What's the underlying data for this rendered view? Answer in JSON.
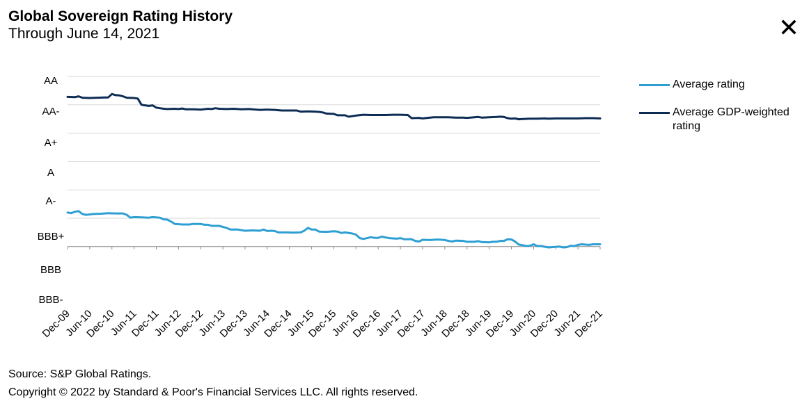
{
  "header": {
    "title": "Global Sovereign Rating History",
    "subtitle": "Through June 14, 2021"
  },
  "icons": {
    "close": "close-icon"
  },
  "footer": {
    "source": "Source: S&P Global Ratings.",
    "copyright": "Copyright © 2022 by Standard & Poor's Financial Services LLC. All rights reserved."
  },
  "chart_data": {
    "type": "line",
    "title": "Global Sovereign Rating History",
    "subtitle": "Through June 14, 2021",
    "xlabel": "",
    "ylabel": "",
    "x_ticks": [
      "Dec-09",
      "Jun-10",
      "Dec-10",
      "Jun-11",
      "Dec-11",
      "Jun-12",
      "Dec-12",
      "Jun-13",
      "Dec-13",
      "Jun-14",
      "Dec-14",
      "Jun-15",
      "Dec-15",
      "Jun-16",
      "Dec-16",
      "Jun-17",
      "Dec-17",
      "Jun-18",
      "Dec-18",
      "Jun-19",
      "Dec-19",
      "Jun-20",
      "Dec-20",
      "Jun-21",
      "Dec-21"
    ],
    "y_ticks": [
      "AA",
      "AA-",
      "A+",
      "A",
      "A-",
      "BBB+",
      "BBB",
      "BBB-"
    ],
    "y_tick_values": [
      19,
      18,
      17,
      16,
      15,
      14,
      13,
      12
    ],
    "ylim": [
      12,
      19
    ],
    "xlim": [
      0,
      144
    ],
    "grid": true,
    "legend_position": "right",
    "series": [
      {
        "name": "Average rating",
        "color": "#2e9fd3",
        "points": [
          [
            0,
            14.2
          ],
          [
            1,
            14.18
          ],
          [
            2,
            14.23
          ],
          [
            3,
            14.25
          ],
          [
            4,
            14.15
          ],
          [
            5,
            14.12
          ],
          [
            7,
            14.15
          ],
          [
            9,
            14.16
          ],
          [
            11,
            14.18
          ],
          [
            13,
            14.17
          ],
          [
            15,
            14.17
          ],
          [
            16,
            14.12
          ],
          [
            17,
            14.02
          ],
          [
            18,
            14.04
          ],
          [
            20,
            14.03
          ],
          [
            22,
            14.02
          ],
          [
            23,
            14.04
          ],
          [
            25,
            14.02
          ],
          [
            26,
            13.96
          ],
          [
            27,
            13.95
          ],
          [
            28,
            13.88
          ],
          [
            29,
            13.8
          ],
          [
            31,
            13.78
          ],
          [
            33,
            13.78
          ],
          [
            34,
            13.8
          ],
          [
            36,
            13.8
          ],
          [
            37,
            13.77
          ],
          [
            38,
            13.77
          ],
          [
            39,
            13.73
          ],
          [
            41,
            13.73
          ],
          [
            43,
            13.66
          ],
          [
            44,
            13.6
          ],
          [
            46,
            13.6
          ],
          [
            48,
            13.56
          ],
          [
            50,
            13.57
          ],
          [
            52,
            13.56
          ],
          [
            53,
            13.6
          ],
          [
            54,
            13.55
          ],
          [
            55,
            13.56
          ],
          [
            56,
            13.55
          ],
          [
            57,
            13.5
          ],
          [
            59,
            13.5
          ],
          [
            61,
            13.49
          ],
          [
            63,
            13.5
          ],
          [
            64,
            13.56
          ],
          [
            65,
            13.66
          ],
          [
            66,
            13.6
          ],
          [
            67,
            13.6
          ],
          [
            68,
            13.53
          ],
          [
            70,
            13.52
          ],
          [
            72,
            13.54
          ],
          [
            73,
            13.53
          ],
          [
            74,
            13.48
          ],
          [
            75,
            13.5
          ],
          [
            77,
            13.46
          ],
          [
            78,
            13.42
          ],
          [
            79,
            13.3
          ],
          [
            80,
            13.27
          ],
          [
            82,
            13.33
          ],
          [
            83,
            13.31
          ],
          [
            84,
            13.31
          ],
          [
            85,
            13.35
          ],
          [
            86,
            13.32
          ],
          [
            87,
            13.3
          ],
          [
            89,
            13.28
          ],
          [
            90,
            13.3
          ],
          [
            91,
            13.26
          ],
          [
            93,
            13.26
          ],
          [
            94,
            13.2
          ],
          [
            95,
            13.18
          ],
          [
            96,
            13.24
          ],
          [
            98,
            13.23
          ],
          [
            100,
            13.25
          ],
          [
            102,
            13.23
          ],
          [
            103,
            13.2
          ],
          [
            104,
            13.18
          ],
          [
            105,
            13.21
          ],
          [
            107,
            13.2
          ],
          [
            108,
            13.17
          ],
          [
            110,
            13.17
          ],
          [
            111,
            13.19
          ],
          [
            112,
            13.16
          ],
          [
            114,
            13.15
          ],
          [
            115,
            13.17
          ],
          [
            116,
            13.17
          ],
          [
            117,
            13.2
          ],
          [
            118,
            13.2
          ],
          [
            119,
            13.26
          ],
          [
            120,
            13.25
          ],
          [
            121,
            13.18
          ],
          [
            122,
            13.07
          ],
          [
            123,
            13.05
          ],
          [
            124,
            13.02
          ],
          [
            125,
            13.03
          ],
          [
            126,
            13.08
          ],
          [
            127,
            13.02
          ],
          [
            128,
            13.02
          ],
          [
            130,
            12.97
          ],
          [
            131,
            12.98
          ],
          [
            133,
            13.0
          ],
          [
            134,
            12.97
          ],
          [
            135,
            12.98
          ],
          [
            136,
            13.03
          ],
          [
            137,
            13.02
          ],
          [
            138,
            13.06
          ],
          [
            139,
            13.08
          ],
          [
            141,
            13.06
          ],
          [
            142,
            13.08
          ],
          [
            144,
            13.08
          ]
        ]
      },
      {
        "name": "Average GDP-weighted rating",
        "color": "#0d2c54",
        "points": [
          [
            0,
            18.28
          ],
          [
            2,
            18.27
          ],
          [
            3,
            18.3
          ],
          [
            4,
            18.25
          ],
          [
            6,
            18.24
          ],
          [
            8,
            18.25
          ],
          [
            10,
            18.26
          ],
          [
            11,
            18.26
          ],
          [
            12,
            18.38
          ],
          [
            13,
            18.34
          ],
          [
            14,
            18.33
          ],
          [
            15,
            18.3
          ],
          [
            16,
            18.25
          ],
          [
            18,
            18.24
          ],
          [
            19,
            18.22
          ],
          [
            20,
            18.0
          ],
          [
            21,
            17.98
          ],
          [
            22,
            17.96
          ],
          [
            23,
            17.98
          ],
          [
            24,
            17.9
          ],
          [
            25,
            17.88
          ],
          [
            26,
            17.86
          ],
          [
            27,
            17.85
          ],
          [
            29,
            17.86
          ],
          [
            30,
            17.85
          ],
          [
            31,
            17.87
          ],
          [
            32,
            17.84
          ],
          [
            34,
            17.84
          ],
          [
            36,
            17.83
          ],
          [
            38,
            17.86
          ],
          [
            39,
            17.85
          ],
          [
            40,
            17.88
          ],
          [
            41,
            17.86
          ],
          [
            43,
            17.85
          ],
          [
            45,
            17.86
          ],
          [
            47,
            17.84
          ],
          [
            49,
            17.85
          ],
          [
            51,
            17.83
          ],
          [
            52,
            17.82
          ],
          [
            54,
            17.83
          ],
          [
            56,
            17.82
          ],
          [
            57,
            17.81
          ],
          [
            58,
            17.8
          ],
          [
            60,
            17.8
          ],
          [
            62,
            17.8
          ],
          [
            63,
            17.76
          ],
          [
            65,
            17.77
          ],
          [
            67,
            17.76
          ],
          [
            68,
            17.75
          ],
          [
            69,
            17.73
          ],
          [
            70,
            17.69
          ],
          [
            72,
            17.68
          ],
          [
            73,
            17.63
          ],
          [
            75,
            17.63
          ],
          [
            76,
            17.58
          ],
          [
            78,
            17.62
          ],
          [
            80,
            17.65
          ],
          [
            82,
            17.64
          ],
          [
            84,
            17.64
          ],
          [
            86,
            17.64
          ],
          [
            88,
            17.65
          ],
          [
            90,
            17.65
          ],
          [
            92,
            17.64
          ],
          [
            93,
            17.53
          ],
          [
            95,
            17.54
          ],
          [
            96,
            17.52
          ],
          [
            98,
            17.55
          ],
          [
            99,
            17.56
          ],
          [
            101,
            17.56
          ],
          [
            103,
            17.56
          ],
          [
            105,
            17.55
          ],
          [
            107,
            17.55
          ],
          [
            108,
            17.54
          ],
          [
            110,
            17.56
          ],
          [
            111,
            17.57
          ],
          [
            112,
            17.55
          ],
          [
            114,
            17.56
          ],
          [
            116,
            17.57
          ],
          [
            117,
            17.58
          ],
          [
            118,
            17.57
          ],
          [
            119,
            17.53
          ],
          [
            120,
            17.51
          ],
          [
            121,
            17.52
          ],
          [
            122,
            17.49
          ],
          [
            123,
            17.5
          ],
          [
            125,
            17.51
          ],
          [
            127,
            17.51
          ],
          [
            129,
            17.52
          ],
          [
            130,
            17.51
          ],
          [
            132,
            17.52
          ],
          [
            134,
            17.52
          ],
          [
            136,
            17.52
          ],
          [
            138,
            17.52
          ],
          [
            140,
            17.53
          ],
          [
            142,
            17.53
          ],
          [
            144,
            17.52
          ]
        ]
      }
    ]
  }
}
